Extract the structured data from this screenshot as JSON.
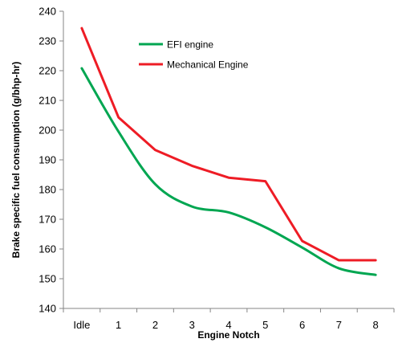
{
  "chart_data": {
    "type": "line",
    "title": "",
    "xlabel": "Engine Notch",
    "ylabel": "Brake specific fuel consumption (g/bhp-hr)",
    "categories": [
      "Idle",
      "1",
      "2",
      "3",
      "4",
      "5",
      "6",
      "7",
      "8"
    ],
    "ylim": [
      140,
      240
    ],
    "yticks": [
      140,
      150,
      160,
      170,
      180,
      190,
      200,
      210,
      220,
      230,
      240
    ],
    "grid": false,
    "legend_position": "top-left",
    "series": [
      {
        "name": "EFI engine",
        "color": "#00a651",
        "smooth": true,
        "values": [
          220.8,
          199.5,
          181.8,
          174.3,
          172.3,
          167.3,
          160.5,
          153.5,
          151.3
        ]
      },
      {
        "name": "Mechanical Engine",
        "color": "#ee1c25",
        "smooth": false,
        "values": [
          234.3,
          204.3,
          193.3,
          188.0,
          184.0,
          182.8,
          162.7,
          156.2,
          156.2
        ]
      }
    ]
  }
}
